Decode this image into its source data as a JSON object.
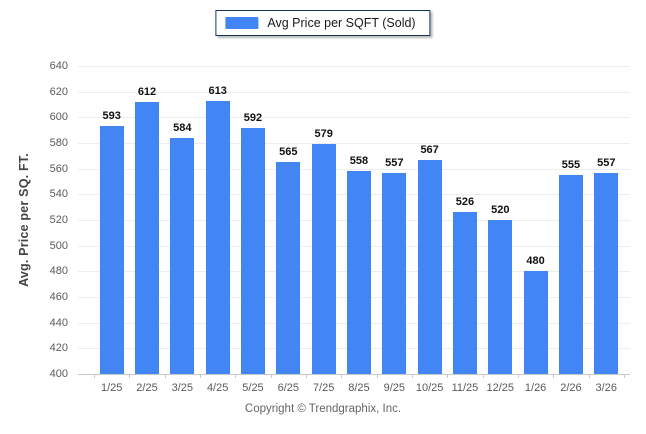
{
  "legend": {
    "label": "Avg Price per SQFT (Sold)",
    "swatch_color": "#4285f4"
  },
  "footer": {
    "copyright": "Copyright © Trendgraphix, Inc."
  },
  "chart_data": {
    "type": "bar",
    "title": "",
    "xlabel": "",
    "ylabel": "Avg. Price per SQ. FT.",
    "categories": [
      "1/25",
      "2/25",
      "3/25",
      "4/25",
      "5/25",
      "6/25",
      "7/25",
      "8/25",
      "9/25",
      "10/25",
      "11/25",
      "12/25",
      "1/26",
      "2/26",
      "3/26"
    ],
    "series": [
      {
        "name": "Avg Price per SQFT (Sold)",
        "values": [
          593,
          612,
          584,
          613,
          592,
          565,
          579,
          558,
          557,
          567,
          526,
          520,
          480,
          555,
          557
        ],
        "color": "#4285f4"
      }
    ],
    "ylim": [
      400,
      640
    ],
    "ytick_step": 20,
    "grid": "horizontal",
    "legend_position": "top-center",
    "value_labels": "above-bars"
  }
}
